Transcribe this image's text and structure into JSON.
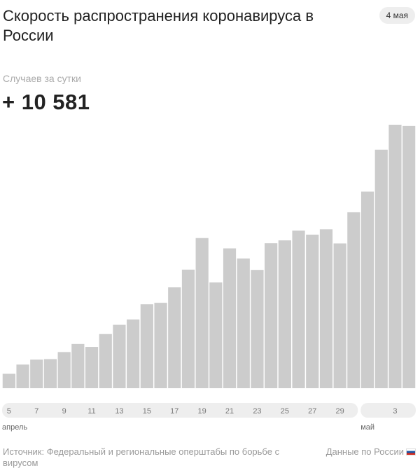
{
  "header": {
    "title": "Скорость распространения коронавируса в России",
    "date_badge": "4 мая"
  },
  "metric": {
    "label": "Случаев за сутки",
    "value": "+ 10 581"
  },
  "footer": {
    "source": "Источник: Федеральный и региональные оперштабы по борьбе с вирусом",
    "country": "Данные по России"
  },
  "colors": {
    "bar": "#cccccc",
    "axis_band": "#eeeeee",
    "tick_text": "#777777"
  },
  "chart_data": {
    "type": "bar",
    "title": "",
    "xlabel": "",
    "ylabel": "",
    "grid": false,
    "legend": "none",
    "ylim": [
      0,
      11000
    ],
    "categories": [
      "5",
      "6",
      "7",
      "8",
      "9",
      "10",
      "11",
      "12",
      "13",
      "14",
      "15",
      "16",
      "17",
      "18",
      "19",
      "20",
      "21",
      "22",
      "23",
      "24",
      "25",
      "26",
      "27",
      "28",
      "29",
      "30",
      "1",
      "2",
      "3",
      "4"
    ],
    "values": [
      582,
      954,
      1154,
      1175,
      1459,
      1786,
      1667,
      2186,
      2558,
      2774,
      3388,
      3448,
      4070,
      4785,
      6060,
      4268,
      5642,
      5236,
      4774,
      5849,
      5966,
      6361,
      6198,
      6411,
      5841,
      7099,
      7933,
      9623,
      10633,
      10581
    ],
    "tick_labels": [
      {
        "category": "5",
        "label": "5"
      },
      {
        "category": "7",
        "label": "7"
      },
      {
        "category": "9",
        "label": "9"
      },
      {
        "category": "11",
        "label": "11"
      },
      {
        "category": "13",
        "label": "13"
      },
      {
        "category": "15",
        "label": "15"
      },
      {
        "category": "17",
        "label": "17"
      },
      {
        "category": "19",
        "label": "19"
      },
      {
        "category": "21",
        "label": "21"
      },
      {
        "category": "23",
        "label": "23"
      },
      {
        "category": "25",
        "label": "25"
      },
      {
        "category": "27",
        "label": "27"
      },
      {
        "category": "29",
        "label": "29"
      },
      {
        "category": "3",
        "label": "3"
      }
    ],
    "month_labels": [
      {
        "label": "апрель",
        "start": "5",
        "end": "30"
      },
      {
        "label": "май",
        "start": "1",
        "end": "4"
      }
    ]
  }
}
